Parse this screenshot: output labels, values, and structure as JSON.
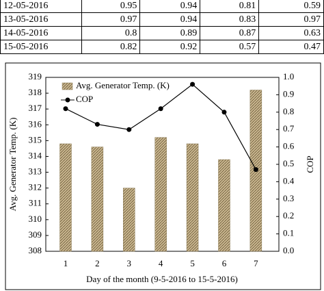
{
  "table": {
    "rows": [
      [
        "12-05-2016",
        "0.95",
        "0.94",
        "0.81",
        "0.59"
      ],
      [
        "13-05-2016",
        "0.97",
        "0.94",
        "0.83",
        "0.97"
      ],
      [
        "14-05-2016",
        "0.8",
        "0.89",
        "0.87",
        "0.63"
      ],
      [
        "15-05-2016",
        "0.82",
        "0.92",
        "0.57",
        "0.47"
      ]
    ]
  },
  "chart_data": {
    "type": "bar_line",
    "xlabel": "Day of the month (9-5-2016 to 15-5-2016)",
    "ylabel": "Avg. Generator Temp. (K)",
    "y2label": "COP",
    "categories": [
      1,
      2,
      3,
      4,
      5,
      6,
      7
    ],
    "series": [
      {
        "name": "Avg. Generator Temp. (K)",
        "type": "bar",
        "color": "#c9b68f",
        "values": [
          314.8,
          314.6,
          312.0,
          315.2,
          314.8,
          313.8,
          318.2
        ]
      },
      {
        "name": "COP",
        "type": "line",
        "axis": "y2",
        "color": "#000000",
        "values": [
          0.82,
          0.73,
          0.7,
          0.82,
          0.96,
          0.8,
          0.47
        ]
      }
    ],
    "ylim": [
      308,
      319
    ],
    "yticks": [
      308,
      309,
      310,
      311,
      312,
      313,
      314,
      315,
      316,
      317,
      318,
      319
    ],
    "y2lim": [
      0,
      1
    ],
    "y2ticks": [
      {
        "value": 0,
        "label": "0.0"
      },
      0.1,
      0.2,
      0.3,
      0.4,
      0.5,
      0.6,
      0.7,
      0.8,
      0.9,
      {
        "value": 1,
        "label": "1.0"
      }
    ]
  }
}
